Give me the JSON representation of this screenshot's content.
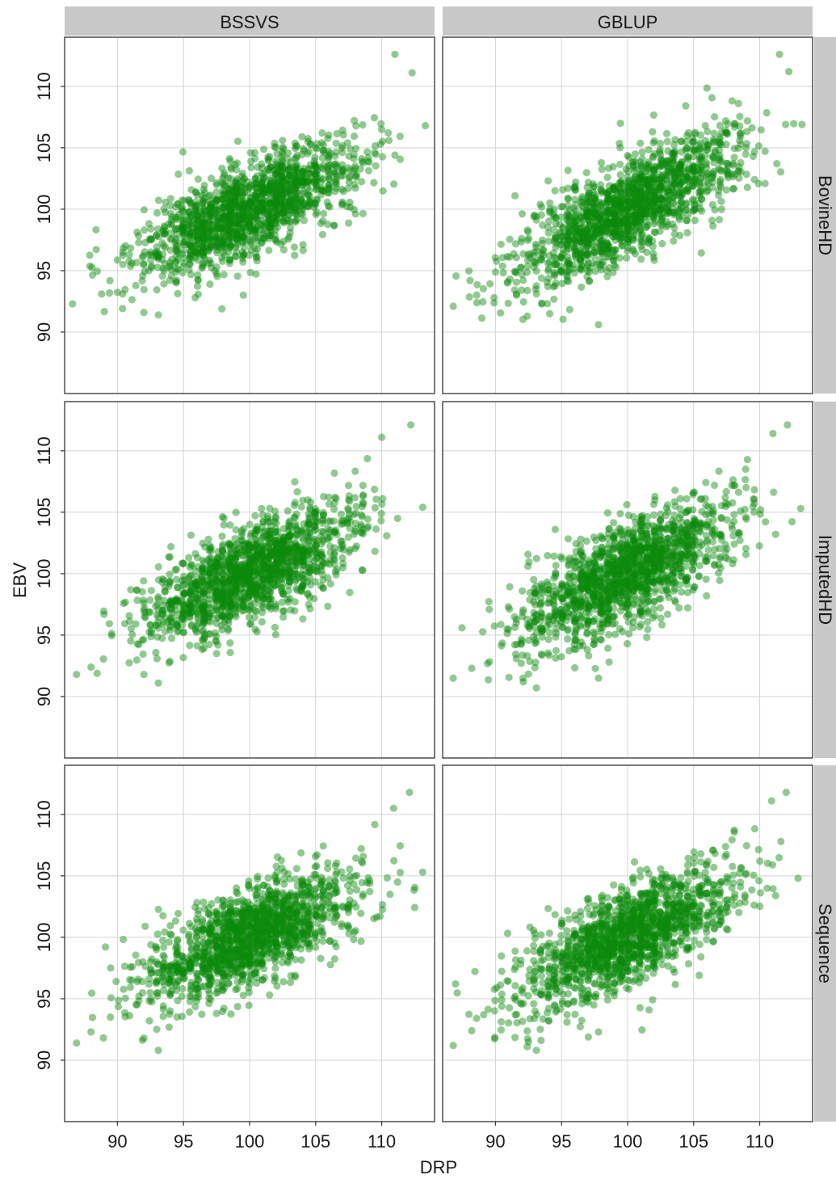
{
  "chart_data": {
    "type": "scatter",
    "title": "",
    "xlabel": "DRP",
    "ylabel": "EBV",
    "xlim": [
      86,
      114
    ],
    "ylim": [
      85,
      114
    ],
    "xticks": [
      90,
      95,
      100,
      105,
      110
    ],
    "yticks": [
      90,
      95,
      100,
      105,
      110
    ],
    "grid": true,
    "point_color": "#0a8a0a",
    "point_opacity": 0.45,
    "column_facets": [
      "BSSVS",
      "GBLUP"
    ],
    "row_facets": [
      "BovineHD",
      "ImputedHD",
      "Sequence"
    ],
    "panels": [
      {
        "column": "BSSVS",
        "row": "BovineHD",
        "slope": 0.48,
        "spread": 1.9,
        "x_range": [
          86.6,
          113.3
        ],
        "y_range": [
          91.3,
          112.6
        ],
        "outliers": [
          [
            86.6,
            92.3
          ],
          [
            88.8,
            93.1
          ],
          [
            92,
            91.6
          ],
          [
            93.1,
            91.4
          ],
          [
            97.9,
            91.9
          ],
          [
            111,
            112.6
          ],
          [
            112.3,
            111.1
          ],
          [
            113.3,
            106.8
          ],
          [
            111,
            104.4
          ]
        ]
      },
      {
        "column": "GBLUP",
        "row": "BovineHD",
        "slope": 0.54,
        "spread": 2.0,
        "x_range": [
          86.8,
          113.2
        ],
        "y_range": [
          90.6,
          112.6
        ],
        "outliers": [
          [
            86.8,
            92.1
          ],
          [
            88.6,
            92.4
          ],
          [
            92.4,
            91.3
          ],
          [
            94.1,
            91.5
          ],
          [
            97.8,
            90.6
          ],
          [
            111.5,
            112.6
          ],
          [
            112.2,
            111.2
          ],
          [
            113.2,
            106.9
          ],
          [
            111.3,
            103.7
          ]
        ]
      },
      {
        "column": "BSSVS",
        "row": "ImputedHD",
        "slope": 0.45,
        "spread": 1.9,
        "x_range": [
          86.9,
          113.1
        ],
        "y_range": [
          91,
          112.1
        ],
        "outliers": [
          [
            86.9,
            91.8
          ],
          [
            88,
            92.4
          ],
          [
            92,
            91.8
          ],
          [
            93.1,
            91.1
          ],
          [
            97.5,
            93.5
          ],
          [
            110,
            111.1
          ],
          [
            112.2,
            112.1
          ],
          [
            113.1,
            105.4
          ],
          [
            111.2,
            104.5
          ]
        ]
      },
      {
        "column": "GBLUP",
        "row": "ImputedHD",
        "slope": 0.52,
        "spread": 2.0,
        "x_range": [
          86.8,
          113.1
        ],
        "y_range": [
          90.7,
          112.1
        ],
        "outliers": [
          [
            86.8,
            91.5
          ],
          [
            88.2,
            92.3
          ],
          [
            92.1,
            91.2
          ],
          [
            93.1,
            90.7
          ],
          [
            97.8,
            91.5
          ],
          [
            111,
            111.4
          ],
          [
            112.1,
            112.1
          ],
          [
            113.1,
            105.3
          ],
          [
            111.2,
            103.2
          ]
        ]
      },
      {
        "column": "BSSVS",
        "row": "Sequence",
        "slope": 0.46,
        "spread": 1.9,
        "x_range": [
          86.9,
          113.1
        ],
        "y_range": [
          90.8,
          111.8
        ],
        "outliers": [
          [
            86.9,
            91.4
          ],
          [
            88,
            92.3
          ],
          [
            92,
            91.8
          ],
          [
            93.1,
            90.8
          ],
          [
            97.5,
            93.8
          ],
          [
            110.9,
            110.5
          ],
          [
            112.1,
            111.8
          ],
          [
            113.1,
            105.3
          ],
          [
            111.2,
            104.5
          ]
        ]
      },
      {
        "column": "GBLUP",
        "row": "Sequence",
        "slope": 0.52,
        "spread": 2.0,
        "x_range": [
          86.8,
          112.9
        ],
        "y_range": [
          90.8,
          111.8
        ],
        "outliers": [
          [
            86.8,
            91.2
          ],
          [
            88.2,
            92.4
          ],
          [
            92.4,
            91.1
          ],
          [
            93.1,
            90.8
          ],
          [
            97.8,
            92.3
          ],
          [
            110.9,
            111.1
          ],
          [
            112,
            111.8
          ],
          [
            112.9,
            104.8
          ],
          [
            111.2,
            103.4
          ]
        ]
      }
    ]
  }
}
